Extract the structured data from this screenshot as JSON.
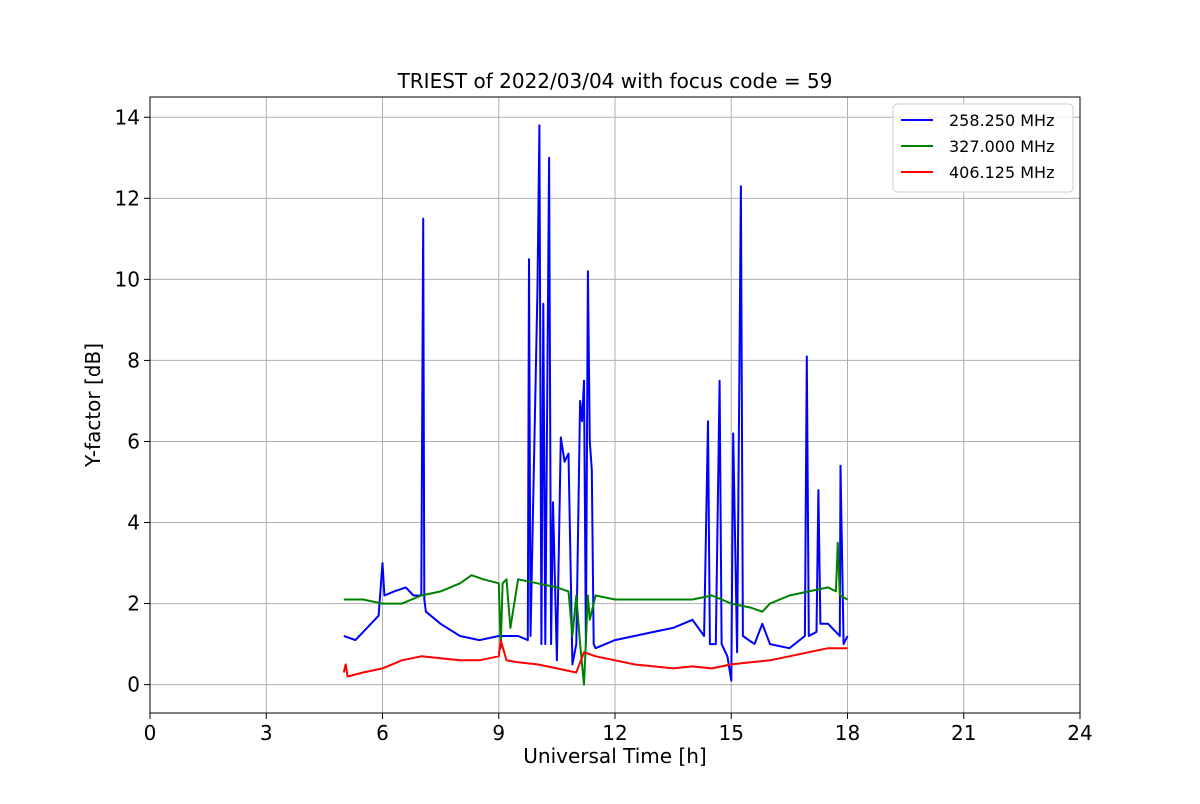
{
  "chart_data": {
    "type": "line",
    "title": "TRIEST of 2022/03/04 with focus code = 59",
    "xlabel": "Universal Time [h]",
    "ylabel": "Y-factor [dB]",
    "xlim": [
      0,
      24
    ],
    "ylim": [
      -0.7,
      14.5
    ],
    "xticks": [
      0,
      3,
      6,
      9,
      12,
      15,
      18,
      21,
      24
    ],
    "yticks": [
      0,
      2,
      4,
      6,
      8,
      10,
      12,
      14
    ],
    "grid": true,
    "legend_position": "top-right",
    "series": [
      {
        "name": "258.250 MHz",
        "color": "#0000ff",
        "x": [
          5.0,
          5.3,
          5.6,
          5.9,
          6.0,
          6.05,
          6.3,
          6.6,
          6.8,
          7.0,
          7.05,
          7.08,
          7.12,
          7.5,
          8.0,
          8.5,
          9.0,
          9.5,
          9.75,
          9.78,
          9.82,
          10.0,
          10.05,
          10.1,
          10.15,
          10.2,
          10.3,
          10.35,
          10.4,
          10.5,
          10.6,
          10.7,
          10.8,
          10.9,
          11.0,
          11.1,
          11.15,
          11.2,
          11.25,
          11.3,
          11.35,
          11.4,
          11.45,
          11.5,
          12.0,
          12.5,
          13.0,
          13.5,
          14.0,
          14.3,
          14.4,
          14.45,
          14.6,
          14.7,
          14.75,
          14.9,
          15.0,
          15.05,
          15.15,
          15.25,
          15.3,
          15.6,
          15.8,
          16.0,
          16.5,
          16.9,
          16.95,
          17.0,
          17.2,
          17.25,
          17.3,
          17.5,
          17.8,
          17.82,
          17.9,
          18.0
        ],
        "y": [
          1.2,
          1.1,
          1.4,
          1.7,
          3.0,
          2.2,
          2.3,
          2.4,
          2.2,
          2.2,
          11.5,
          2.1,
          1.8,
          1.5,
          1.2,
          1.1,
          1.2,
          1.2,
          1.1,
          10.5,
          1.2,
          9.8,
          13.8,
          1.0,
          9.4,
          1.0,
          13.0,
          1.0,
          4.5,
          0.6,
          6.1,
          5.5,
          5.7,
          0.5,
          1.0,
          7.0,
          6.5,
          7.5,
          1.0,
          10.2,
          6.0,
          5.3,
          1.0,
          0.9,
          1.1,
          1.2,
          1.3,
          1.4,
          1.6,
          1.2,
          6.5,
          1.0,
          1.0,
          7.5,
          1.0,
          0.7,
          0.1,
          6.2,
          0.8,
          12.3,
          1.2,
          1.0,
          1.5,
          1.0,
          0.9,
          1.2,
          8.1,
          1.2,
          1.3,
          4.8,
          1.5,
          1.5,
          1.2,
          5.4,
          1.0,
          1.2
        ]
      },
      {
        "name": "327.000 MHz",
        "color": "#008000",
        "x": [
          5.0,
          5.5,
          6.0,
          6.5,
          7.0,
          7.5,
          8.0,
          8.3,
          8.6,
          9.0,
          9.05,
          9.1,
          9.2,
          9.3,
          9.5,
          10.0,
          10.5,
          10.8,
          10.9,
          11.0,
          11.1,
          11.2,
          11.3,
          11.35,
          11.5,
          12.0,
          13.0,
          14.0,
          14.5,
          15.0,
          15.5,
          15.8,
          16.0,
          16.5,
          17.0,
          17.5,
          17.7,
          17.75,
          17.8,
          18.0
        ],
        "y": [
          2.1,
          2.1,
          2.0,
          2.0,
          2.2,
          2.3,
          2.5,
          2.7,
          2.6,
          2.5,
          0.9,
          2.5,
          2.6,
          1.4,
          2.6,
          2.5,
          2.4,
          2.3,
          1.2,
          2.2,
          1.0,
          0.0,
          2.2,
          1.6,
          2.2,
          2.1,
          2.1,
          2.1,
          2.2,
          2.0,
          1.9,
          1.8,
          2.0,
          2.2,
          2.3,
          2.4,
          2.3,
          3.5,
          2.2,
          2.1
        ]
      },
      {
        "name": "406.125 MHz",
        "color": "#ff0000",
        "x": [
          5.0,
          5.05,
          5.1,
          5.5,
          6.0,
          6.5,
          7.0,
          7.5,
          8.0,
          8.5,
          9.0,
          9.05,
          9.2,
          9.5,
          10.0,
          10.5,
          11.0,
          11.2,
          11.5,
          12.0,
          12.5,
          13.0,
          13.5,
          14.0,
          14.5,
          15.0,
          15.5,
          16.0,
          16.5,
          17.0,
          17.5,
          18.0
        ],
        "y": [
          0.3,
          0.5,
          0.2,
          0.3,
          0.4,
          0.6,
          0.7,
          0.65,
          0.6,
          0.6,
          0.7,
          1.1,
          0.6,
          0.55,
          0.5,
          0.4,
          0.3,
          0.8,
          0.7,
          0.6,
          0.5,
          0.45,
          0.4,
          0.45,
          0.4,
          0.5,
          0.55,
          0.6,
          0.7,
          0.8,
          0.9,
          0.9
        ]
      }
    ]
  }
}
